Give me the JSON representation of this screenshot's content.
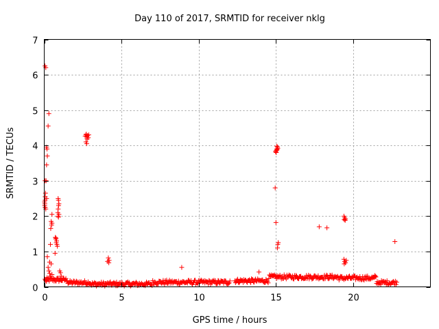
{
  "chart_data": {
    "type": "scatter",
    "title": "Day 110 of 2017, SRMTID for receiver nklg",
    "xlabel": "GPS time / hours",
    "ylabel": "SRMTID / TECUs",
    "xlim": [
      0,
      25
    ],
    "ylim": [
      0,
      7
    ],
    "xticks": [
      0,
      5,
      10,
      15,
      20
    ],
    "yticks": [
      0,
      1,
      2,
      3,
      4,
      5,
      6,
      7
    ],
    "xtick_labels": [
      "0",
      "5",
      "10",
      "15",
      "20"
    ],
    "ytick_labels": [
      "0",
      "1",
      "2",
      "3",
      "4",
      "5",
      "6",
      "7"
    ],
    "grid": true,
    "marker": "+",
    "color": "#ff0000",
    "series": [
      {
        "name": "SRMTID",
        "points": [
          [
            0.05,
            6.25
          ],
          [
            0.1,
            6.2
          ],
          [
            0.3,
            4.9
          ],
          [
            0.25,
            4.55
          ],
          [
            0.15,
            3.95
          ],
          [
            0.18,
            3.9
          ],
          [
            0.2,
            3.7
          ],
          [
            0.15,
            3.45
          ],
          [
            0.05,
            3.0
          ],
          [
            0.12,
            3.0
          ],
          [
            0.08,
            2.65
          ],
          [
            0.06,
            2.55
          ],
          [
            0.05,
            2.45
          ],
          [
            0.04,
            2.35
          ],
          [
            0.03,
            2.3
          ],
          [
            0.06,
            2.25
          ],
          [
            0.1,
            2.2
          ],
          [
            0.02,
            2.4
          ],
          [
            0.15,
            2.5
          ],
          [
            0.5,
            2.05
          ],
          [
            0.45,
            1.85
          ],
          [
            0.5,
            1.8
          ],
          [
            0.48,
            1.75
          ],
          [
            0.42,
            1.65
          ],
          [
            0.4,
            1.2
          ],
          [
            0.35,
            0.7
          ],
          [
            0.45,
            0.65
          ],
          [
            0.2,
            0.85
          ],
          [
            0.25,
            0.55
          ],
          [
            0.3,
            0.45
          ],
          [
            0.35,
            0.38
          ],
          [
            0.4,
            0.3
          ],
          [
            0.5,
            0.35
          ],
          [
            0.6,
            0.25
          ],
          [
            0.7,
            0.95
          ],
          [
            0.72,
            1.4
          ],
          [
            0.75,
            1.35
          ],
          [
            0.8,
            1.3
          ],
          [
            0.78,
            1.25
          ],
          [
            0.82,
            1.2
          ],
          [
            0.85,
            1.15
          ],
          [
            0.76,
            1.38
          ],
          [
            0.9,
            2.5
          ],
          [
            0.92,
            2.45
          ],
          [
            0.95,
            2.35
          ],
          [
            0.93,
            2.3
          ],
          [
            0.9,
            2.2
          ],
          [
            0.88,
            2.1
          ],
          [
            0.95,
            2.05
          ],
          [
            0.9,
            2.0
          ],
          [
            0.92,
            1.97
          ],
          [
            1.0,
            0.45
          ],
          [
            1.05,
            0.4
          ],
          [
            1.1,
            0.3
          ],
          [
            0.1,
            0.2
          ],
          [
            0.15,
            0.15
          ],
          [
            2.7,
            4.3
          ],
          [
            2.75,
            4.25
          ],
          [
            2.8,
            4.28
          ],
          [
            2.85,
            4.22
          ],
          [
            2.72,
            4.32
          ],
          [
            2.78,
            4.18
          ],
          [
            2.65,
            4.26
          ],
          [
            2.88,
            4.3
          ],
          [
            2.7,
            4.1
          ],
          [
            2.75,
            4.05
          ],
          [
            4.15,
            0.82
          ],
          [
            4.2,
            0.75
          ],
          [
            4.1,
            0.72
          ],
          [
            4.18,
            0.68
          ],
          [
            8.9,
            0.55
          ],
          [
            13.9,
            0.42
          ],
          [
            15.0,
            3.85
          ],
          [
            15.05,
            3.9
          ],
          [
            15.1,
            3.95
          ],
          [
            15.02,
            3.8
          ],
          [
            15.08,
            3.88
          ],
          [
            15.12,
            3.92
          ],
          [
            14.98,
            3.82
          ],
          [
            15.06,
            3.98
          ],
          [
            15.04,
            3.86
          ],
          [
            14.95,
            2.8
          ],
          [
            15.0,
            1.82
          ],
          [
            15.15,
            1.25
          ],
          [
            15.12,
            1.2
          ],
          [
            15.1,
            1.1
          ],
          [
            17.8,
            1.7
          ],
          [
            18.3,
            1.67
          ],
          [
            19.4,
            2.0
          ],
          [
            19.45,
            1.95
          ],
          [
            19.5,
            1.92
          ],
          [
            19.42,
            1.9
          ],
          [
            19.48,
            1.88
          ],
          [
            19.4,
            0.78
          ],
          [
            19.45,
            0.72
          ],
          [
            19.5,
            0.68
          ],
          [
            19.55,
            0.75
          ],
          [
            19.42,
            0.65
          ],
          [
            21.4,
            0.32
          ],
          [
            22.7,
            1.28
          ]
        ]
      }
    ]
  }
}
